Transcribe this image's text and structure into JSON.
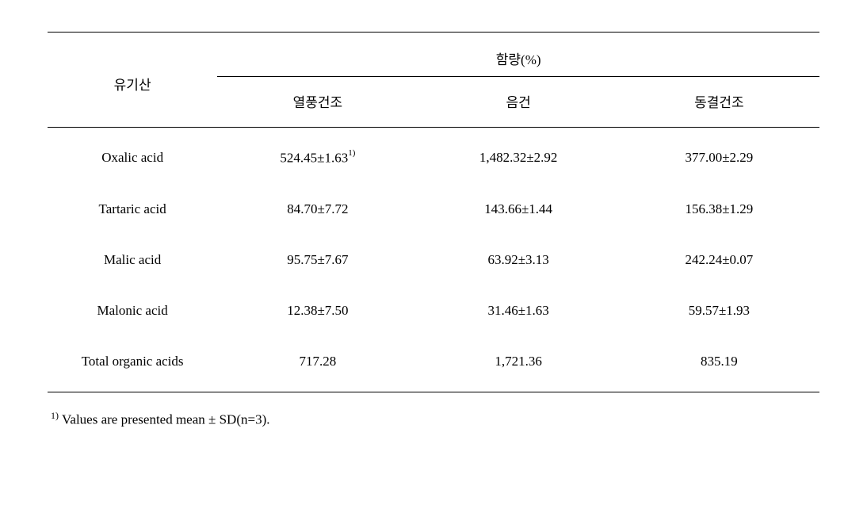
{
  "table": {
    "header": {
      "rowLabel": "유기산",
      "groupLabel": "함량(%)",
      "columns": [
        "열풍건조",
        "음건",
        "동결건조"
      ]
    },
    "rows": [
      {
        "label": "Oxalic acid",
        "values": [
          "524.45±1.63",
          "1,482.32±2.92",
          "377.00±2.29"
        ],
        "hasSuper": true,
        "super": "1)"
      },
      {
        "label": "Tartaric acid",
        "values": [
          "84.70±7.72",
          "143.66±1.44",
          "156.38±1.29"
        ]
      },
      {
        "label": "Malic acid",
        "values": [
          "95.75±7.67",
          "63.92±3.13",
          "242.24±0.07"
        ]
      },
      {
        "label": "Malonic acid",
        "values": [
          "12.38±7.50",
          "31.46±1.63",
          "59.57±1.93"
        ]
      },
      {
        "label": "Total organic acids",
        "values": [
          "717.28",
          "1,721.36",
          "835.19"
        ]
      }
    ]
  },
  "footnote": {
    "marker": "1)",
    "text": "Values are presented mean ± SD(n=3)."
  },
  "style": {
    "backgroundColor": "#ffffff",
    "textColor": "#000000",
    "borderColor": "#000000",
    "fontSize": 17,
    "supFontSize": 11,
    "fontFamily": "Times New Roman, serif"
  }
}
